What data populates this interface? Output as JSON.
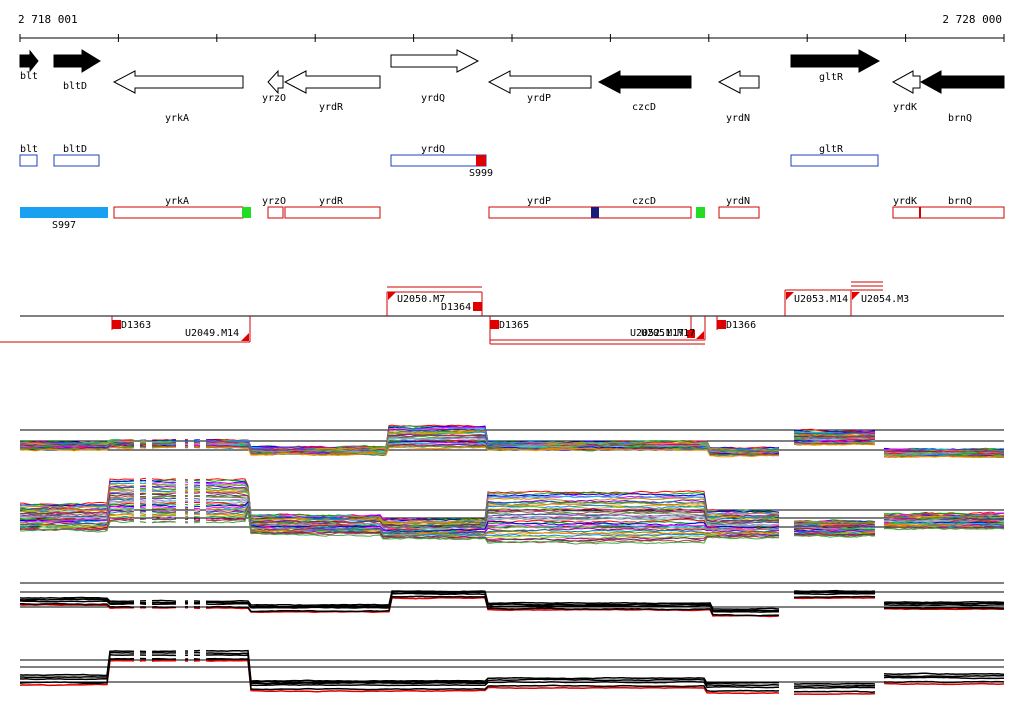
{
  "ruler": {
    "start": "2 718 001",
    "end": "2 728 000",
    "start_bp": 2718001,
    "end_bp": 2728000
  },
  "colors": {
    "forward_gene": "#000000",
    "reverse_gene": "#ffffff",
    "outline_blue": "#1f3fbf",
    "outline_red": "#d00000",
    "segment_blue": "#1aa0f0",
    "marker_red": "#e00000",
    "marker_green": "#22dd22",
    "marker_navy": "#1a1a7a"
  },
  "genes": [
    {
      "name": "blt",
      "strand": "+",
      "fill": "black"
    },
    {
      "name": "bltD",
      "strand": "+",
      "fill": "black"
    },
    {
      "name": "yrkA",
      "strand": "-",
      "fill": "white"
    },
    {
      "name": "yrzO",
      "strand": "-",
      "fill": "white"
    },
    {
      "name": "yrdR",
      "strand": "-",
      "fill": "white"
    },
    {
      "name": "yrdQ",
      "strand": "+",
      "fill": "white"
    },
    {
      "name": "yrdP",
      "strand": "-",
      "fill": "white"
    },
    {
      "name": "czcD",
      "strand": "-",
      "fill": "black"
    },
    {
      "name": "yrdN",
      "strand": "-",
      "fill": "white"
    },
    {
      "name": "gltR",
      "strand": "+",
      "fill": "black"
    },
    {
      "name": "yrdK",
      "strand": "-",
      "fill": "white"
    },
    {
      "name": "brnQ",
      "strand": "-",
      "fill": "black"
    }
  ],
  "forward_units": {
    "labels": [
      "blt",
      "bltD",
      "yrdQ",
      "gltR"
    ],
    "marker": "S999"
  },
  "reverse_units": {
    "labels": [
      "yrkA",
      "yrzO",
      "yrdR",
      "yrdP",
      "czcD",
      "yrdN",
      "yrdK",
      "brnQ"
    ],
    "segment": "S997"
  },
  "upper_elements": [
    "U2050.M7",
    "D1364",
    "U2053.M14",
    "U2054.M3"
  ],
  "lower_elements": [
    "D1363",
    "U2049.M14",
    "D1365",
    "U2052.M17",
    "U2051.M17",
    "D1366"
  ]
}
